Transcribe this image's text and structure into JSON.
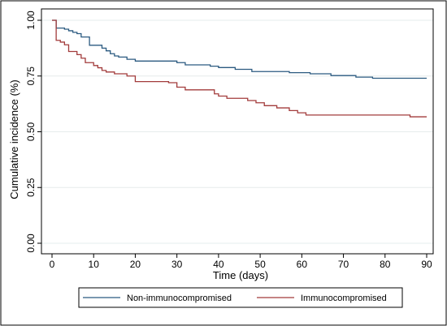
{
  "chart_data": {
    "type": "line",
    "step": true,
    "title": "",
    "xlabel": "Time (days)",
    "ylabel": "Cumulative incidence (%)",
    "xlim": [
      0,
      90
    ],
    "ylim": [
      0,
      1
    ],
    "xticks": [
      0,
      10,
      20,
      30,
      40,
      50,
      60,
      70,
      80,
      90
    ],
    "xtick_labels": [
      "0",
      "10",
      "20",
      "30",
      "40",
      "50",
      "60",
      "70",
      "80",
      "90"
    ],
    "yticks": [
      0,
      0.25,
      0.5,
      0.75,
      1
    ],
    "ytick_labels": [
      "0.00",
      "0.25",
      "0.50",
      "0.75",
      "1.00"
    ],
    "grid": true,
    "legend_position": "bottom",
    "series": [
      {
        "name": "Non-immunocompromised",
        "color": "#2b5a80",
        "x": [
          0,
          1,
          3,
          4,
          5,
          6,
          7,
          9,
          12,
          13,
          14,
          15,
          16,
          18,
          20,
          25,
          30,
          32,
          38,
          40,
          44,
          48,
          57,
          62,
          67,
          73,
          77,
          90
        ],
        "y": [
          1.0,
          0.965,
          0.96,
          0.953,
          0.946,
          0.94,
          0.925,
          0.888,
          0.875,
          0.863,
          0.85,
          0.84,
          0.835,
          0.825,
          0.817,
          0.817,
          0.81,
          0.8,
          0.794,
          0.788,
          0.78,
          0.77,
          0.765,
          0.76,
          0.752,
          0.745,
          0.74,
          0.74
        ]
      },
      {
        "name": "Immunocompromised",
        "color": "#a23b3b",
        "x": [
          0,
          1,
          2,
          3,
          4,
          6,
          7,
          8,
          10,
          11,
          12,
          13,
          15,
          18,
          20,
          28,
          30,
          32,
          39,
          40,
          42,
          47,
          49,
          51,
          54,
          57,
          59,
          61,
          86,
          90
        ],
        "y": [
          1.0,
          0.91,
          0.902,
          0.89,
          0.86,
          0.846,
          0.83,
          0.81,
          0.797,
          0.787,
          0.775,
          0.768,
          0.76,
          0.75,
          0.725,
          0.72,
          0.7,
          0.688,
          0.67,
          0.66,
          0.65,
          0.64,
          0.63,
          0.617,
          0.607,
          0.595,
          0.585,
          0.575,
          0.567,
          0.567
        ]
      }
    ]
  }
}
